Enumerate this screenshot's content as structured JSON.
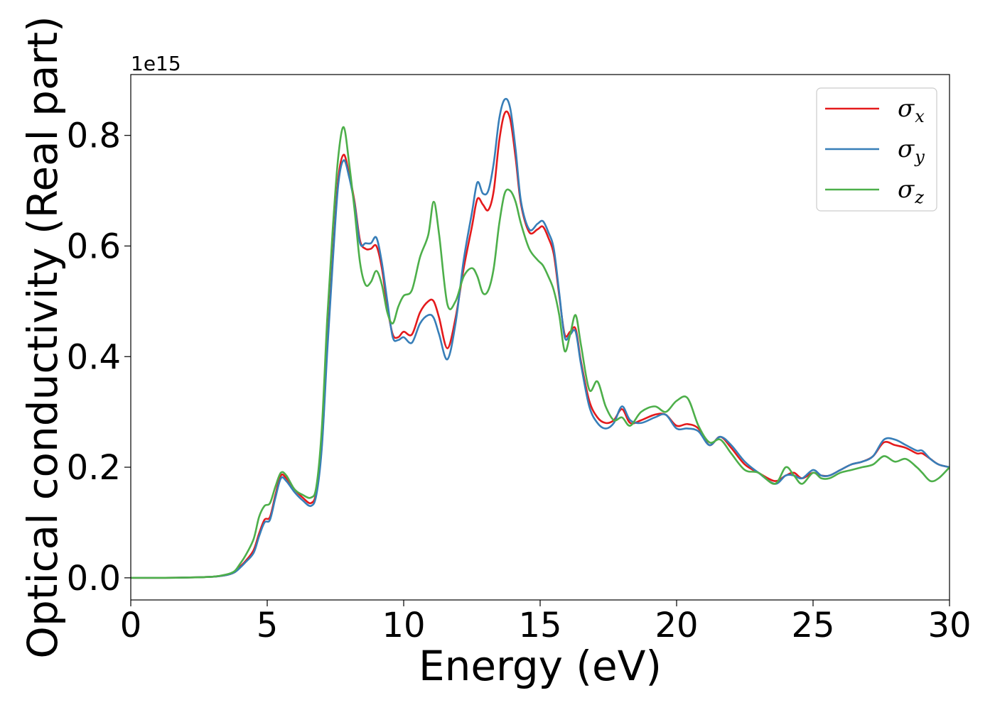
{
  "chart_data": {
    "type": "line",
    "xlabel": "Energy (eV)",
    "ylabel": "Optical conductivity (Real part)",
    "y_offset_text": "1e15",
    "xlim": [
      0,
      30
    ],
    "ylim": [
      -0.04,
      0.91
    ],
    "x_ticks": [
      0,
      5,
      10,
      15,
      20,
      25,
      30
    ],
    "x_tick_labels": [
      "0",
      "5",
      "10",
      "15",
      "20",
      "25",
      "30"
    ],
    "y_ticks": [
      0.0,
      0.2,
      0.4,
      0.6,
      0.8
    ],
    "y_tick_labels": [
      "0.0",
      "0.2",
      "0.4",
      "0.6",
      "0.8"
    ],
    "grid": false,
    "legend_position": "top-right",
    "series": [
      {
        "name": "σx",
        "legend_symbol": "σ",
        "legend_subscript": "x",
        "color": "#e41a1c",
        "x": [
          0,
          1,
          2,
          3,
          3.5,
          3.8,
          4.0,
          4.2,
          4.5,
          4.7,
          4.9,
          5.1,
          5.3,
          5.5,
          5.7,
          6.0,
          6.3,
          6.6,
          6.8,
          7.0,
          7.2,
          7.4,
          7.6,
          7.8,
          8.0,
          8.2,
          8.4,
          8.6,
          8.8,
          9.0,
          9.2,
          9.4,
          9.6,
          9.8,
          10.0,
          10.3,
          10.6,
          10.9,
          11.1,
          11.3,
          11.6,
          11.9,
          12.2,
          12.5,
          12.7,
          12.9,
          13.1,
          13.3,
          13.5,
          13.7,
          13.9,
          14.1,
          14.3,
          14.6,
          14.9,
          15.1,
          15.3,
          15.5,
          15.7,
          15.9,
          16.1,
          16.3,
          16.5,
          16.8,
          17.1,
          17.4,
          17.7,
          18.0,
          18.3,
          18.7,
          19.2,
          19.6,
          20.0,
          20.4,
          20.8,
          21.2,
          21.6,
          22.0,
          22.5,
          23.0,
          23.6,
          24.0,
          24.3,
          24.6,
          25.0,
          25.3,
          25.6,
          26.0,
          26.4,
          26.8,
          27.2,
          27.6,
          28.0,
          28.4,
          28.8,
          29.0,
          29.3,
          29.6,
          30.0
        ],
        "values": [
          0.0,
          0.0,
          0.0005,
          0.002,
          0.005,
          0.01,
          0.02,
          0.03,
          0.05,
          0.08,
          0.105,
          0.11,
          0.15,
          0.185,
          0.18,
          0.16,
          0.145,
          0.135,
          0.155,
          0.24,
          0.42,
          0.58,
          0.72,
          0.765,
          0.73,
          0.68,
          0.61,
          0.595,
          0.595,
          0.6,
          0.56,
          0.49,
          0.44,
          0.435,
          0.445,
          0.44,
          0.48,
          0.5,
          0.5,
          0.47,
          0.415,
          0.47,
          0.56,
          0.635,
          0.685,
          0.675,
          0.665,
          0.7,
          0.79,
          0.84,
          0.83,
          0.76,
          0.675,
          0.625,
          0.63,
          0.635,
          0.615,
          0.585,
          0.51,
          0.44,
          0.445,
          0.45,
          0.39,
          0.32,
          0.29,
          0.28,
          0.285,
          0.305,
          0.28,
          0.285,
          0.295,
          0.295,
          0.275,
          0.278,
          0.27,
          0.24,
          0.255,
          0.235,
          0.205,
          0.19,
          0.175,
          0.185,
          0.19,
          0.18,
          0.19,
          0.185,
          0.185,
          0.195,
          0.205,
          0.21,
          0.22,
          0.245,
          0.24,
          0.235,
          0.225,
          0.225,
          0.215,
          0.205,
          0.2
        ]
      },
      {
        "name": "σy",
        "legend_symbol": "σ",
        "legend_subscript": "y",
        "color": "#377eb8",
        "x": [
          0,
          1,
          2,
          3,
          3.5,
          3.8,
          4.0,
          4.2,
          4.5,
          4.7,
          4.9,
          5.1,
          5.3,
          5.5,
          5.7,
          6.0,
          6.3,
          6.6,
          6.8,
          7.0,
          7.2,
          7.4,
          7.6,
          7.8,
          8.0,
          8.2,
          8.4,
          8.6,
          8.8,
          9.0,
          9.2,
          9.4,
          9.6,
          9.8,
          10.0,
          10.3,
          10.6,
          10.9,
          11.1,
          11.3,
          11.6,
          11.9,
          12.2,
          12.5,
          12.7,
          12.9,
          13.1,
          13.3,
          13.5,
          13.7,
          13.9,
          14.1,
          14.3,
          14.6,
          14.9,
          15.1,
          15.3,
          15.5,
          15.7,
          15.9,
          16.1,
          16.3,
          16.5,
          16.8,
          17.1,
          17.4,
          17.7,
          18.0,
          18.3,
          18.7,
          19.2,
          19.6,
          20.0,
          20.4,
          20.8,
          21.2,
          21.6,
          22.0,
          22.5,
          23.0,
          23.6,
          24.0,
          24.3,
          24.6,
          25.0,
          25.3,
          25.6,
          26.0,
          26.4,
          26.8,
          27.2,
          27.6,
          28.0,
          28.4,
          28.8,
          29.0,
          29.3,
          29.6,
          30.0
        ],
        "values": [
          0.0,
          0.0,
          0.0005,
          0.002,
          0.005,
          0.01,
          0.018,
          0.028,
          0.045,
          0.075,
          0.1,
          0.105,
          0.145,
          0.18,
          0.175,
          0.155,
          0.14,
          0.13,
          0.15,
          0.235,
          0.41,
          0.57,
          0.71,
          0.755,
          0.725,
          0.675,
          0.605,
          0.605,
          0.605,
          0.615,
          0.57,
          0.5,
          0.435,
          0.43,
          0.435,
          0.425,
          0.46,
          0.475,
          0.47,
          0.44,
          0.395,
          0.46,
          0.575,
          0.66,
          0.715,
          0.695,
          0.7,
          0.75,
          0.83,
          0.865,
          0.85,
          0.775,
          0.68,
          0.63,
          0.64,
          0.645,
          0.625,
          0.595,
          0.515,
          0.435,
          0.44,
          0.445,
          0.385,
          0.31,
          0.28,
          0.27,
          0.28,
          0.31,
          0.285,
          0.28,
          0.29,
          0.295,
          0.27,
          0.27,
          0.265,
          0.24,
          0.255,
          0.24,
          0.21,
          0.19,
          0.17,
          0.185,
          0.185,
          0.18,
          0.195,
          0.185,
          0.185,
          0.195,
          0.205,
          0.21,
          0.22,
          0.25,
          0.25,
          0.24,
          0.23,
          0.23,
          0.215,
          0.205,
          0.2
        ]
      },
      {
        "name": "σz",
        "legend_symbol": "σ",
        "legend_subscript": "z",
        "color": "#4daf4a",
        "x": [
          0,
          1,
          2,
          3,
          3.5,
          3.8,
          4.0,
          4.2,
          4.5,
          4.7,
          4.9,
          5.1,
          5.3,
          5.5,
          5.7,
          6.0,
          6.3,
          6.6,
          6.8,
          7.0,
          7.2,
          7.4,
          7.6,
          7.8,
          8.0,
          8.2,
          8.4,
          8.6,
          8.8,
          9.0,
          9.2,
          9.4,
          9.6,
          9.8,
          10.0,
          10.3,
          10.6,
          10.9,
          11.1,
          11.3,
          11.6,
          11.9,
          12.2,
          12.5,
          12.7,
          12.9,
          13.1,
          13.3,
          13.5,
          13.7,
          13.9,
          14.1,
          14.3,
          14.6,
          14.9,
          15.1,
          15.3,
          15.5,
          15.7,
          15.9,
          16.1,
          16.3,
          16.5,
          16.8,
          17.1,
          17.4,
          17.7,
          18.0,
          18.3,
          18.7,
          19.2,
          19.6,
          20.0,
          20.4,
          20.8,
          21.2,
          21.6,
          22.0,
          22.5,
          23.0,
          23.6,
          24.0,
          24.3,
          24.6,
          25.0,
          25.3,
          25.6,
          26.0,
          26.4,
          26.8,
          27.2,
          27.6,
          28.0,
          28.4,
          28.8,
          29.0,
          29.3,
          29.6,
          30.0
        ],
        "values": [
          0.0,
          0.0,
          0.0005,
          0.002,
          0.006,
          0.012,
          0.025,
          0.04,
          0.07,
          0.11,
          0.13,
          0.135,
          0.165,
          0.19,
          0.185,
          0.16,
          0.15,
          0.145,
          0.165,
          0.27,
          0.47,
          0.63,
          0.76,
          0.815,
          0.75,
          0.665,
          0.57,
          0.53,
          0.535,
          0.555,
          0.53,
          0.48,
          0.46,
          0.49,
          0.51,
          0.52,
          0.58,
          0.62,
          0.68,
          0.62,
          0.495,
          0.5,
          0.545,
          0.56,
          0.545,
          0.515,
          0.52,
          0.56,
          0.64,
          0.695,
          0.7,
          0.68,
          0.64,
          0.595,
          0.575,
          0.565,
          0.545,
          0.52,
          0.475,
          0.41,
          0.44,
          0.475,
          0.42,
          0.34,
          0.355,
          0.31,
          0.285,
          0.29,
          0.275,
          0.3,
          0.31,
          0.3,
          0.32,
          0.325,
          0.275,
          0.245,
          0.25,
          0.225,
          0.195,
          0.19,
          0.17,
          0.2,
          0.185,
          0.17,
          0.19,
          0.18,
          0.18,
          0.19,
          0.195,
          0.2,
          0.205,
          0.22,
          0.21,
          0.215,
          0.2,
          0.19,
          0.175,
          0.18,
          0.2
        ]
      }
    ]
  }
}
